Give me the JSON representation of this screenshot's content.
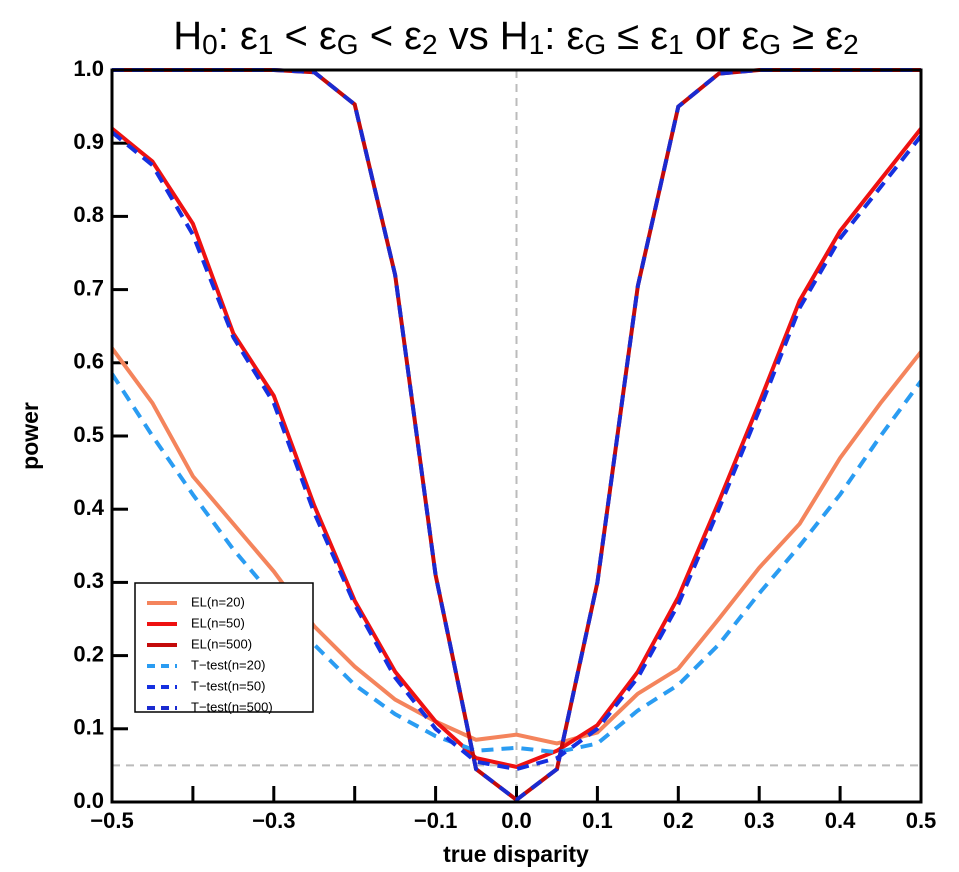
{
  "chart_data": {
    "type": "line",
    "title": [
      {
        "text": "H",
        "sub": "0"
      },
      {
        "text": ": ε",
        "sub": "1"
      },
      {
        "text": " < ε",
        "sub": "G"
      },
      {
        "text": " < ε",
        "sub": "2"
      },
      {
        "text": " vs H",
        "sub": "1"
      },
      {
        "text": ": ε",
        "sub": "G"
      },
      {
        "text": " ≤ ε",
        "sub": "1"
      },
      {
        "text": " or ε",
        "sub": "G"
      },
      {
        "text": " ≥ ε",
        "sub": "2"
      }
    ],
    "x_label": "true disparity",
    "y_label": "power",
    "x": [
      -0.5,
      -0.45,
      -0.4,
      -0.35,
      -0.3,
      -0.25,
      -0.2,
      -0.15,
      -0.1,
      -0.05,
      0,
      0.05,
      0.1,
      0.15,
      0.2,
      0.25,
      0.3,
      0.35,
      0.4,
      0.45,
      0.5
    ],
    "series": [
      {
        "name": "EL(n=20)",
        "color": "#f4845c",
        "dashed": false,
        "values": [
          0.62,
          0.545,
          0.445,
          0.38,
          0.315,
          0.24,
          0.185,
          0.14,
          0.11,
          0.085,
          0.092,
          0.08,
          0.095,
          0.148,
          0.182,
          0.25,
          0.32,
          0.38,
          0.47,
          0.545,
          0.615
        ]
      },
      {
        "name": "EL(n=50)",
        "color": "#ee1111",
        "dashed": false,
        "values": [
          0.92,
          0.875,
          0.79,
          0.64,
          0.555,
          0.405,
          0.275,
          0.178,
          0.11,
          0.06,
          0.048,
          0.07,
          0.105,
          0.178,
          0.28,
          0.41,
          0.545,
          0.685,
          0.78,
          0.85,
          0.92
        ]
      },
      {
        "name": "EL(n=500)",
        "color": "#c40a0a",
        "dashed": false,
        "values": [
          1.0,
          1.0,
          1.0,
          1.0,
          1.0,
          0.997,
          0.953,
          0.72,
          0.31,
          0.045,
          0.003,
          0.045,
          0.3,
          0.705,
          0.95,
          0.995,
          1.0,
          1.0,
          1.0,
          1.0,
          1.0
        ]
      },
      {
        "name": "T−test(n=20)",
        "color": "#2a9cf2",
        "dashed": true,
        "values": [
          0.585,
          0.5,
          0.42,
          0.345,
          0.28,
          0.215,
          0.16,
          0.12,
          0.09,
          0.07,
          0.074,
          0.068,
          0.08,
          0.125,
          0.16,
          0.215,
          0.285,
          0.35,
          0.42,
          0.5,
          0.575
        ]
      },
      {
        "name": "T−test(n=50)",
        "color": "#1530e0",
        "dashed": true,
        "values": [
          0.915,
          0.87,
          0.775,
          0.635,
          0.545,
          0.395,
          0.27,
          0.17,
          0.1,
          0.055,
          0.045,
          0.06,
          0.1,
          0.17,
          0.27,
          0.4,
          0.535,
          0.675,
          0.77,
          0.84,
          0.91
        ]
      },
      {
        "name": "T−test(n=500)",
        "color": "#1a2ad0",
        "dashed": true,
        "values": [
          1.0,
          1.0,
          1.0,
          1.0,
          1.0,
          0.997,
          0.953,
          0.72,
          0.31,
          0.045,
          0.003,
          0.045,
          0.3,
          0.705,
          0.95,
          0.995,
          1.0,
          1.0,
          1.0,
          1.0,
          1.0
        ]
      }
    ],
    "xlim": [
      -0.5,
      0.5
    ],
    "ylim": [
      0,
      1
    ],
    "xticks": [
      {
        "value": -0.5,
        "label": "−0.5"
      },
      {
        "value": -0.3,
        "label": "−0.3"
      },
      {
        "value": -0.1,
        "label": "−0.1"
      },
      {
        "value": 0,
        "label": "0.0"
      },
      0.1,
      0.2,
      0.3,
      0.4,
      0.5
    ],
    "xminor_ticks": [
      -0.4,
      -0.2
    ],
    "yticks": [
      {
        "value": 0,
        "label": "0.0"
      },
      0.1,
      0.2,
      0.3,
      0.4,
      0.5,
      0.6,
      0.7,
      0.8,
      0.9,
      {
        "value": 1,
        "label": "1.0"
      }
    ],
    "hlines": [
      0.05
    ],
    "vlines": [
      0
    ],
    "grid": false,
    "legend": "lower left"
  }
}
